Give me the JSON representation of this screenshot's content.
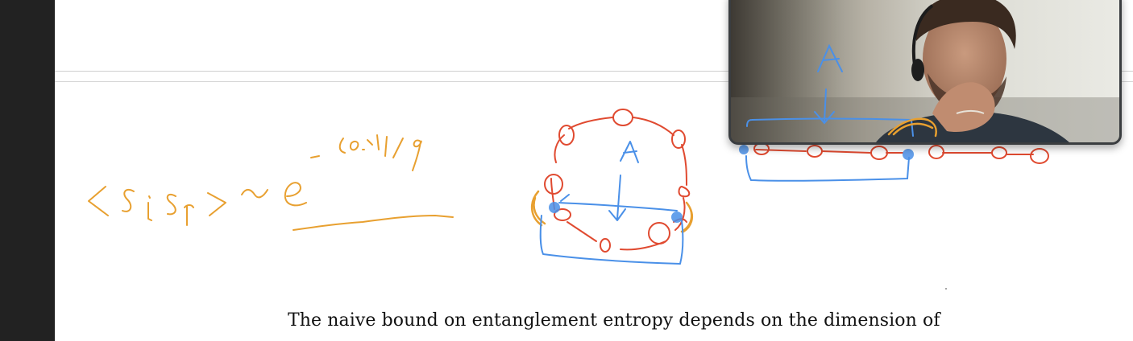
{
  "document": {
    "body_text": "The naive bound on entanglement entropy depends on the dimension of"
  },
  "annotations": {
    "ink_colors": {
      "orange": "#E8A030",
      "red": "#E04A30",
      "blue": "#4A90E8"
    }
  },
  "video_call": {
    "participant_icon": "person-video-feed"
  }
}
